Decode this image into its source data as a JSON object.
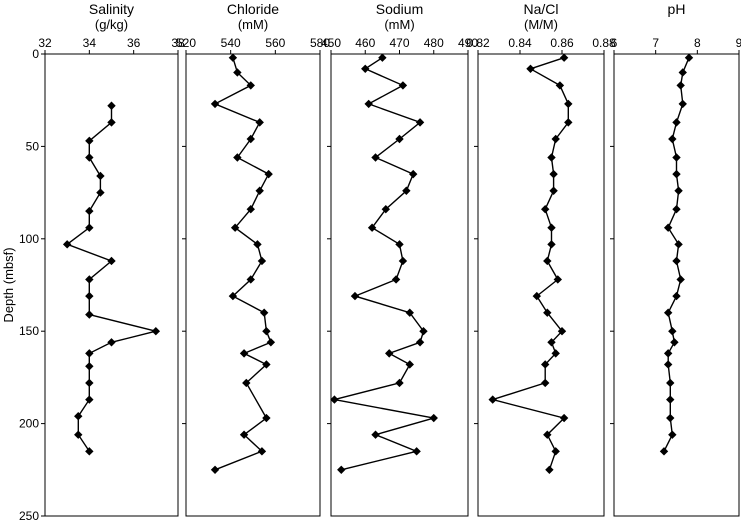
{
  "figure": {
    "y_axis_label": "Depth (mbsf)",
    "y_ticks": [
      "0",
      "50",
      "100",
      "150",
      "200",
      "250"
    ]
  },
  "chart_data": [
    {
      "type": "scatter",
      "title": "Salinity",
      "unit": "(g/kg)",
      "xlim": [
        32,
        38
      ],
      "x_ticks": [
        "32",
        "34",
        "36",
        "38"
      ],
      "ylim": [
        0,
        250
      ],
      "y_inverted": true,
      "connected": true,
      "points": [
        [
          35,
          28
        ],
        [
          35,
          37
        ],
        [
          34,
          47
        ],
        [
          34,
          56
        ],
        [
          34.5,
          66
        ],
        [
          34.5,
          75
        ],
        [
          34,
          85
        ],
        [
          34,
          94
        ],
        [
          33,
          103
        ],
        [
          35,
          112
        ],
        [
          34,
          122
        ],
        [
          34,
          131
        ],
        [
          34,
          141
        ],
        [
          37,
          150
        ],
        [
          35,
          156
        ],
        [
          34,
          162
        ],
        [
          34,
          169
        ],
        [
          34,
          178
        ],
        [
          34,
          187
        ],
        [
          33.5,
          196
        ],
        [
          33.5,
          206
        ],
        [
          34,
          215
        ]
      ]
    },
    {
      "type": "scatter",
      "title": "Chloride",
      "unit": "(mM)",
      "xlim": [
        520,
        580
      ],
      "x_ticks": [
        "520",
        "540",
        "560",
        "580"
      ],
      "ylim": [
        0,
        250
      ],
      "y_inverted": true,
      "connected": true,
      "points": [
        [
          541,
          2
        ],
        [
          543,
          10
        ],
        [
          549,
          17
        ],
        [
          533,
          27
        ],
        [
          553,
          37
        ],
        [
          549,
          46
        ],
        [
          543,
          56
        ],
        [
          557,
          65
        ],
        [
          553,
          74
        ],
        [
          549,
          84
        ],
        [
          542,
          94
        ],
        [
          552,
          103
        ],
        [
          554,
          112
        ],
        [
          549,
          122
        ],
        [
          541,
          131
        ],
        [
          555,
          140
        ],
        [
          556,
          150
        ],
        [
          558,
          156
        ],
        [
          546,
          162
        ],
        [
          556,
          168
        ],
        [
          547,
          178
        ],
        [
          556,
          197
        ],
        [
          546,
          206
        ],
        [
          554,
          215
        ],
        [
          533,
          225
        ]
      ]
    },
    {
      "type": "scatter",
      "title": "Sodium",
      "unit": "(mM)",
      "xlim": [
        450,
        490
      ],
      "x_ticks": [
        "450",
        "460",
        "470",
        "480",
        "490"
      ],
      "ylim": [
        0,
        250
      ],
      "y_inverted": true,
      "connected": true,
      "points": [
        [
          465,
          2
        ],
        [
          460,
          8
        ],
        [
          471,
          17
        ],
        [
          461,
          27
        ],
        [
          476,
          37
        ],
        [
          470,
          46
        ],
        [
          463,
          56
        ],
        [
          474,
          65
        ],
        [
          472,
          74
        ],
        [
          466,
          84
        ],
        [
          462,
          94
        ],
        [
          470,
          103
        ],
        [
          471,
          112
        ],
        [
          469,
          122
        ],
        [
          457,
          131
        ],
        [
          473,
          140
        ],
        [
          477,
          150
        ],
        [
          476,
          156
        ],
        [
          467,
          162
        ],
        [
          473,
          168
        ],
        [
          470,
          178
        ],
        [
          451,
          187
        ],
        [
          480,
          197
        ],
        [
          463,
          206
        ],
        [
          475,
          215
        ],
        [
          453,
          225
        ]
      ]
    },
    {
      "type": "scatter",
      "title": "Na/Cl",
      "unit": "(M/M)",
      "xlim": [
        0.82,
        0.88
      ],
      "x_ticks": [
        "0.82",
        "0.84",
        "0.86",
        "0.88"
      ],
      "ylim": [
        0,
        250
      ],
      "y_inverted": true,
      "connected": true,
      "points": [
        [
          0.861,
          2
        ],
        [
          0.845,
          8
        ],
        [
          0.859,
          17
        ],
        [
          0.863,
          27
        ],
        [
          0.863,
          37
        ],
        [
          0.857,
          46
        ],
        [
          0.855,
          56
        ],
        [
          0.856,
          65
        ],
        [
          0.856,
          74
        ],
        [
          0.852,
          84
        ],
        [
          0.855,
          94
        ],
        [
          0.855,
          103
        ],
        [
          0.853,
          112
        ],
        [
          0.858,
          122
        ],
        [
          0.848,
          131
        ],
        [
          0.853,
          140
        ],
        [
          0.86,
          150
        ],
        [
          0.855,
          156
        ],
        [
          0.857,
          162
        ],
        [
          0.852,
          168
        ],
        [
          0.852,
          178
        ],
        [
          0.827,
          187
        ],
        [
          0.861,
          197
        ],
        [
          0.853,
          206
        ],
        [
          0.857,
          215
        ],
        [
          0.854,
          225
        ]
      ]
    },
    {
      "type": "scatter",
      "title": "pH",
      "unit": "",
      "xlim": [
        6,
        9
      ],
      "x_ticks": [
        "6",
        "7",
        "8",
        "9"
      ],
      "ylim": [
        0,
        250
      ],
      "y_inverted": true,
      "connected": true,
      "points": [
        [
          7.8,
          2
        ],
        [
          7.65,
          10
        ],
        [
          7.6,
          17
        ],
        [
          7.65,
          27
        ],
        [
          7.5,
          37
        ],
        [
          7.4,
          46
        ],
        [
          7.5,
          56
        ],
        [
          7.5,
          65
        ],
        [
          7.55,
          74
        ],
        [
          7.5,
          84
        ],
        [
          7.3,
          94
        ],
        [
          7.55,
          103
        ],
        [
          7.5,
          112
        ],
        [
          7.6,
          122
        ],
        [
          7.5,
          131
        ],
        [
          7.3,
          140
        ],
        [
          7.4,
          150
        ],
        [
          7.45,
          156
        ],
        [
          7.3,
          162
        ],
        [
          7.3,
          168
        ],
        [
          7.35,
          178
        ],
        [
          7.35,
          187
        ],
        [
          7.35,
          197
        ],
        [
          7.4,
          206
        ],
        [
          7.2,
          215
        ]
      ]
    }
  ]
}
